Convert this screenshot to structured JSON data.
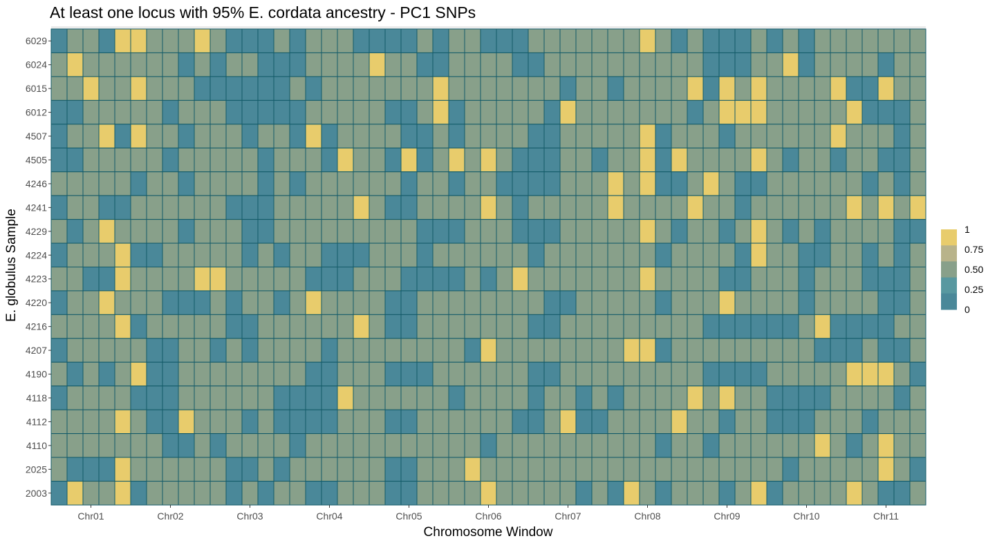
{
  "chart_data": {
    "type": "heatmap",
    "title": "At least one locus with 95% E. cordata ancestry - PC1 SNPs",
    "xlabel": "Chromosome Window",
    "ylabel": "E. globulus Sample",
    "x_tick_labels": [
      "Chr01",
      "Chr02",
      "Chr03",
      "Chr04",
      "Chr05",
      "Chr06",
      "Chr07",
      "Chr08",
      "Chr09",
      "Chr10",
      "Chr11"
    ],
    "windows_per_chromosome": 5,
    "rows": [
      "6029",
      "6024",
      "6015",
      "6012",
      "4507",
      "4505",
      "4246",
      "4241",
      "4229",
      "4224",
      "4223",
      "4220",
      "4216",
      "4207",
      "4190",
      "4118",
      "4112",
      "4110",
      "2025",
      "2003"
    ],
    "value_scale": [
      0,
      0.25,
      0.5,
      1
    ],
    "values": [
      [
        0,
        0.5,
        0.5,
        0,
        1,
        1,
        0.5,
        0.5,
        0.5,
        1,
        0.5,
        0,
        0,
        0,
        0.5,
        0,
        0.5,
        0.5,
        0.5,
        0,
        0,
        0,
        0,
        0.5,
        0,
        0.5,
        0.5,
        0,
        0,
        0,
        0.5,
        0.5,
        0.5,
        0.5,
        0.5,
        0.5,
        0.5,
        1,
        0.5,
        0,
        0.5,
        0,
        0,
        0,
        0.5,
        0,
        0.5,
        0,
        0.5,
        0.5,
        0.5,
        0.5,
        0.5,
        0.5,
        0.5
      ],
      [
        0.5,
        1,
        0.5,
        0.5,
        0.5,
        0.5,
        0.5,
        0.5,
        0,
        0.5,
        0,
        0.5,
        0.5,
        0,
        0,
        0,
        0.5,
        0.5,
        0.5,
        0.5,
        1,
        0.5,
        0.5,
        0,
        0,
        0.5,
        0.5,
        0.5,
        0.5,
        0,
        0,
        0.5,
        0.5,
        0.5,
        0.5,
        0.5,
        0.5,
        0.5,
        0.5,
        0.5,
        0.5,
        0,
        0,
        0,
        0.5,
        0.5,
        1,
        0,
        0.5,
        0.5,
        0.5,
        0.5,
        0,
        0.5,
        0.5
      ],
      [
        0.5,
        0.5,
        1,
        0.5,
        0.5,
        1,
        0.5,
        0.5,
        0.5,
        0,
        0,
        0,
        0,
        0,
        0,
        0.5,
        0,
        0.5,
        0.5,
        0.5,
        0.5,
        0.5,
        0.5,
        0.5,
        1,
        0.5,
        0.5,
        0.5,
        0.5,
        0.5,
        0.5,
        0.5,
        0,
        0.5,
        0.5,
        0,
        0.5,
        0.5,
        0.5,
        0.5,
        1,
        0,
        1,
        0.5,
        1,
        0.5,
        0.5,
        0.5,
        0.5,
        1,
        0,
        0,
        1,
        0.5,
        0.5
      ],
      [
        0,
        0,
        0.5,
        0.5,
        0.5,
        0.5,
        0.5,
        0,
        0.5,
        0.5,
        0.5,
        0,
        0,
        0,
        0,
        0,
        0.5,
        0.5,
        0.5,
        0.5,
        0.5,
        0,
        0,
        0.5,
        1,
        0,
        0.5,
        0.5,
        0.5,
        0.5,
        0.5,
        0,
        1,
        0.5,
        0.5,
        0.5,
        0.5,
        0.5,
        0.5,
        0.5,
        0,
        0.5,
        1,
        1,
        1,
        0.5,
        0.5,
        0.5,
        0.5,
        0.5,
        1,
        0,
        0,
        0,
        0.5
      ],
      [
        0,
        0.5,
        0.5,
        1,
        0,
        1,
        0.5,
        0.5,
        0,
        0.5,
        0.5,
        0.5,
        0,
        0.5,
        0.5,
        0,
        1,
        0,
        0.5,
        0.5,
        0.5,
        0.5,
        0,
        0,
        0.5,
        0,
        0.5,
        0.5,
        0.5,
        0.5,
        0,
        0,
        0.5,
        0.5,
        0.5,
        0.5,
        0.5,
        1,
        0,
        0.5,
        0.5,
        0.5,
        0,
        0.5,
        0.5,
        0.5,
        0.5,
        0.5,
        0.5,
        1,
        0.5,
        0.5,
        0.5,
        0,
        0.5
      ],
      [
        0,
        0,
        0.5,
        0.5,
        0.5,
        0.5,
        0.5,
        0,
        0.5,
        0.5,
        0.5,
        0.5,
        0.5,
        0,
        0.5,
        0.5,
        0.5,
        0,
        1,
        0.5,
        0.5,
        0,
        1,
        0,
        0.5,
        1,
        0.5,
        1,
        0.5,
        0,
        0,
        0,
        0.5,
        0.5,
        0,
        0.5,
        0.5,
        1,
        0,
        1,
        0.5,
        0.5,
        0.5,
        0.5,
        1,
        0.5,
        0,
        0.5,
        0.5,
        0,
        0.5,
        0.5,
        0,
        0,
        0.5
      ],
      [
        0.5,
        0.5,
        0.5,
        0.5,
        0.5,
        0,
        0.5,
        0.5,
        0,
        0.5,
        0.5,
        0.5,
        0.5,
        0,
        0.5,
        0,
        0.5,
        0.5,
        0.5,
        0.5,
        0.5,
        0.5,
        0,
        0.5,
        0.5,
        0,
        0.5,
        0.5,
        0,
        0,
        0,
        0,
        0.5,
        0.5,
        0.5,
        1,
        0.5,
        1,
        0,
        0,
        0.5,
        1,
        0.5,
        0,
        0,
        0.5,
        0.5,
        0.5,
        0.5,
        0.5,
        0.5,
        0,
        0.5,
        0,
        0.5
      ],
      [
        0,
        0.5,
        0.5,
        0,
        0,
        0.5,
        0.5,
        0.5,
        0.5,
        0.5,
        0.5,
        0,
        0,
        0,
        0.5,
        0.5,
        0.5,
        0.5,
        0.5,
        1,
        0.5,
        0,
        0,
        0.5,
        0.5,
        0.5,
        0.5,
        1,
        0.5,
        0,
        0.5,
        0.5,
        0.5,
        0.5,
        0.5,
        1,
        0.5,
        0.5,
        0.5,
        0.5,
        1,
        0.5,
        0.5,
        0,
        0.5,
        0.5,
        0.5,
        0.5,
        0.5,
        0.5,
        1,
        0.5,
        1,
        0.5,
        1
      ],
      [
        0.5,
        0,
        0.5,
        1,
        0.5,
        0.5,
        0.5,
        0.5,
        0,
        0.5,
        0.5,
        0.5,
        0,
        0,
        0.5,
        0.5,
        0.5,
        0.5,
        0.5,
        0.5,
        0.5,
        0.5,
        0.5,
        0,
        0,
        0,
        0.5,
        0.5,
        0.5,
        0,
        0,
        0,
        0.5,
        0.5,
        0.5,
        0.5,
        0.5,
        1,
        0.5,
        0,
        0.5,
        0.5,
        0,
        0.5,
        1,
        0.5,
        0,
        0.5,
        0,
        0.5,
        0.5,
        0.5,
        0.5,
        0,
        0
      ],
      [
        0,
        0.5,
        0.5,
        0.5,
        1,
        0,
        0,
        0.5,
        0.5,
        0.5,
        0.5,
        0.5,
        0,
        0.5,
        0,
        0.5,
        0.5,
        0,
        0,
        0,
        0.5,
        0.5,
        0.5,
        0,
        0.5,
        0.5,
        0.5,
        0.5,
        0.5,
        0.5,
        0,
        0.5,
        0.5,
        0.5,
        0.5,
        0.5,
        0.5,
        0.5,
        0,
        0.5,
        0.5,
        0.5,
        0.5,
        0,
        1,
        0.5,
        0.5,
        0,
        0,
        0.5,
        0.5,
        0,
        0.5,
        0,
        0.5
      ],
      [
        0.5,
        0.5,
        0,
        0,
        1,
        0.5,
        0.5,
        0.5,
        0.5,
        1,
        1,
        0.5,
        0.5,
        0.5,
        0.5,
        0.5,
        0,
        0,
        0,
        0.5,
        0.5,
        0.5,
        0,
        0,
        0,
        0,
        0.5,
        0,
        0.5,
        1,
        0.5,
        0.5,
        0.5,
        0.5,
        0.5,
        0.5,
        0.5,
        1,
        0.5,
        0.5,
        0.5,
        0.5,
        0,
        0,
        0.5,
        0.5,
        0.5,
        0,
        0.5,
        0.5,
        0.5,
        0,
        0,
        0,
        0.5
      ],
      [
        0,
        0.5,
        0.5,
        1,
        0.5,
        0.5,
        0.5,
        0,
        0,
        0,
        0.5,
        0,
        0.5,
        0.5,
        0,
        0.5,
        1,
        0.5,
        0.5,
        0.5,
        0.5,
        0,
        0,
        0.5,
        0.5,
        0.5,
        0.5,
        0.5,
        0.5,
        0.5,
        0.5,
        0,
        0,
        0.5,
        0.5,
        0.5,
        0.5,
        0.5,
        0,
        0.5,
        0.5,
        0.5,
        1,
        0.5,
        0.5,
        0.5,
        0.5,
        0,
        0.5,
        0.5,
        0.5,
        0.5,
        0,
        0,
        0.5
      ],
      [
        0.5,
        0.5,
        0.5,
        0.5,
        1,
        0,
        0.5,
        0.5,
        0.5,
        0.5,
        0.5,
        0,
        0,
        0.5,
        0.5,
        0.5,
        0.5,
        0.5,
        0.5,
        1,
        0.5,
        0,
        0,
        0.5,
        0.5,
        0.5,
        0.5,
        0.5,
        0.5,
        0.5,
        0,
        0,
        0.5,
        0.5,
        0.5,
        0.5,
        0.5,
        0.5,
        0.5,
        0.5,
        0.5,
        0,
        0,
        0,
        0,
        0,
        0,
        0.5,
        1,
        0,
        0,
        0,
        0,
        0.5,
        0.5
      ],
      [
        0,
        0.5,
        0.5,
        0.5,
        0.5,
        0.5,
        0,
        0,
        0.5,
        0.5,
        0,
        0.5,
        0,
        0.5,
        0.5,
        0.5,
        0.5,
        0,
        0.5,
        0.5,
        0.5,
        0.5,
        0.5,
        0.5,
        0.5,
        0.5,
        0,
        1,
        0.5,
        0.5,
        0.5,
        0.5,
        0.5,
        0.5,
        0.5,
        0.5,
        1,
        1,
        0,
        0.5,
        0.5,
        0.5,
        0.5,
        0.5,
        0.5,
        0.5,
        0.5,
        0.5,
        0,
        0,
        0,
        0.5,
        0,
        0,
        0.5
      ],
      [
        0.5,
        0,
        0.5,
        0,
        0.5,
        1,
        0,
        0,
        0.5,
        0.5,
        0.5,
        0.5,
        0.5,
        0.5,
        0.5,
        0.5,
        0,
        0,
        0.5,
        0.5,
        0.5,
        0,
        0,
        0,
        0.5,
        0.5,
        0.5,
        0.5,
        0.5,
        0.5,
        0,
        0,
        0.5,
        0.5,
        0.5,
        0.5,
        0.5,
        0.5,
        0.5,
        0.5,
        0.5,
        0,
        0,
        0,
        0,
        0.5,
        0.5,
        0.5,
        0.5,
        0.5,
        1,
        1,
        1,
        0.5,
        0
      ],
      [
        0,
        0.5,
        0.5,
        0.5,
        0.5,
        0,
        0,
        0,
        0.5,
        0.5,
        0.5,
        0.5,
        0.5,
        0.5,
        0,
        0,
        0,
        0,
        1,
        0.5,
        0.5,
        0.5,
        0.5,
        0.5,
        0.5,
        0,
        0.5,
        0.5,
        0.5,
        0.5,
        0,
        0.5,
        0.5,
        0,
        0.5,
        0,
        0.5,
        0.5,
        0.5,
        0.5,
        1,
        0.5,
        1,
        0.5,
        0.5,
        0,
        0,
        0,
        0,
        0.5,
        0.5,
        0.5,
        0.5,
        0,
        0.5
      ],
      [
        0.5,
        0.5,
        0.5,
        0.5,
        1,
        0.5,
        0,
        0,
        1,
        0.5,
        0.5,
        0.5,
        0,
        0.5,
        0,
        0,
        0,
        0,
        0.5,
        0.5,
        0.5,
        0,
        0,
        0.5,
        0.5,
        0.5,
        0.5,
        0.5,
        0.5,
        0,
        0,
        0.5,
        1,
        0,
        0,
        0.5,
        0.5,
        0.5,
        0.5,
        1,
        0.5,
        0.5,
        0,
        0.5,
        0.5,
        0,
        0,
        0,
        0.5,
        0.5,
        0.5,
        0,
        0.5,
        0.5,
        0.5
      ],
      [
        0.5,
        0.5,
        0.5,
        0.5,
        0.5,
        0.5,
        0.5,
        0,
        0,
        0.5,
        0,
        0.5,
        0.5,
        0.5,
        0.5,
        0,
        0.5,
        0.5,
        0.5,
        0.5,
        0.5,
        0.5,
        0.5,
        0.5,
        0.5,
        0.5,
        0.5,
        0,
        0.5,
        0.5,
        0.5,
        0.5,
        0.5,
        0.5,
        0.5,
        0.5,
        0.5,
        0.5,
        0,
        0.5,
        0.5,
        0,
        0.5,
        0.5,
        0.5,
        0.5,
        0.5,
        0.5,
        1,
        0.5,
        0,
        0.5,
        1,
        0.5,
        0.5
      ],
      [
        0.5,
        0,
        0,
        0,
        1,
        0.5,
        0.5,
        0.5,
        0.5,
        0.5,
        0.5,
        0,
        0,
        0.5,
        0,
        0.5,
        0.5,
        0.5,
        0.5,
        0.5,
        0.5,
        0,
        0,
        0.5,
        0.5,
        0.5,
        1,
        0.5,
        0.5,
        0.5,
        0.5,
        0.5,
        0.5,
        0.5,
        0.5,
        0.5,
        0.5,
        0.5,
        0.5,
        0.5,
        0.5,
        0.5,
        0.5,
        0.5,
        0.5,
        0.5,
        0,
        0.5,
        0.5,
        0.5,
        0.5,
        0.5,
        1,
        0.5,
        0
      ],
      [
        0,
        1,
        0.5,
        0.5,
        1,
        0,
        0.5,
        0.5,
        0.5,
        0.5,
        0.5,
        0,
        0.5,
        0,
        0.5,
        0.5,
        0,
        0,
        0.5,
        0.5,
        0.5,
        0,
        0,
        0.5,
        0.5,
        0.5,
        0.5,
        1,
        0.5,
        0.5,
        0.5,
        0.5,
        0.5,
        0,
        0.5,
        0,
        1,
        0.5,
        0,
        0.5,
        0.5,
        0.5,
        0,
        0.5,
        1,
        0,
        0.5,
        0.5,
        0.5,
        0.5,
        1,
        0.5,
        0,
        0,
        0.5
      ]
    ],
    "legend": {
      "title": "",
      "labels": [
        "1",
        "0.75",
        "0.50",
        "0.25",
        "0"
      ],
      "colors": [
        "#e8cc6c",
        "#b8b38a",
        "#88a08a",
        "#5898a0",
        "#4a8899"
      ]
    },
    "colors": {
      "low": "#4a8899",
      "mid": "#88a08a",
      "high": "#e8cc6c",
      "cell_border": "#125a68",
      "panel_background": "#ebebeb"
    },
    "grid": true,
    "legend_position": "right"
  }
}
